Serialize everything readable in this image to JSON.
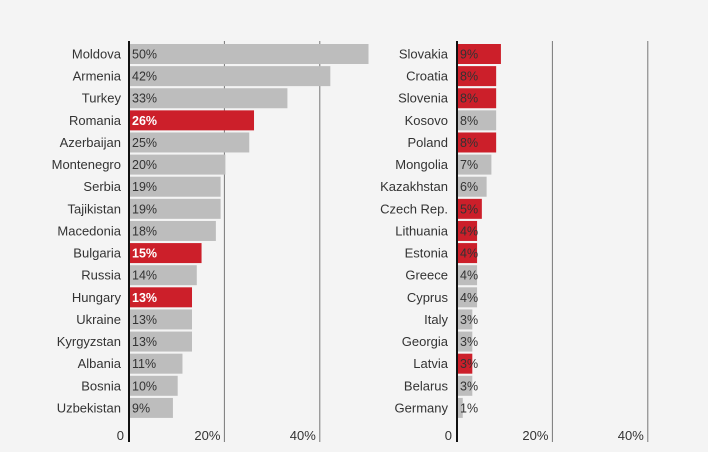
{
  "colors": {
    "background": "#f4f4f4",
    "bar_default": "#bdbdbd",
    "bar_highlight": "#cc1f2a",
    "axis": "#111111",
    "grid": "#777777",
    "text": "#333333"
  },
  "chart_data": [
    {
      "type": "bar",
      "orientation": "horizontal",
      "categories": [
        "Moldova",
        "Armenia",
        "Turkey",
        "Romania",
        "Azerbaijan",
        "Montenegro",
        "Serbia",
        "Tajikistan",
        "Macedonia",
        "Bulgaria",
        "Russia",
        "Hungary",
        "Ukraine",
        "Kyrgyzstan",
        "Albania",
        "Bosnia",
        "Uzbekistan"
      ],
      "values": [
        50,
        42,
        33,
        26,
        25,
        20,
        19,
        19,
        18,
        15,
        14,
        13,
        13,
        13,
        11,
        10,
        9
      ],
      "value_labels": [
        "50%",
        "42%",
        "33%",
        "26%",
        "25%",
        "20%",
        "19%",
        "19%",
        "18%",
        "15%",
        "14%",
        "13%",
        "13%",
        "13%",
        "11%",
        "10%",
        "9%"
      ],
      "highlighted": [
        "Romania",
        "Bulgaria",
        "Hungary"
      ],
      "xlim": [
        0,
        50
      ],
      "xticks": [
        0,
        20,
        40
      ],
      "xtick_labels": [
        "0",
        "20%",
        "40%"
      ],
      "grid": true
    },
    {
      "type": "bar",
      "orientation": "horizontal",
      "categories": [
        "Slovakia",
        "Croatia",
        "Slovenia",
        "Kosovo",
        "Poland",
        "Mongolia",
        "Kazakhstan",
        "Czech Rep.",
        "Lithuania",
        "Estonia",
        "Greece",
        "Cyprus",
        "Italy",
        "Georgia",
        "Latvia",
        "Belarus",
        "Germany"
      ],
      "values": [
        9,
        8,
        8,
        8,
        8,
        7,
        6,
        5,
        4,
        4,
        4,
        4,
        3,
        3,
        3,
        3,
        1
      ],
      "value_labels": [
        "9%",
        "8%",
        "8%",
        "8%",
        "8%",
        "7%",
        "6%",
        "5%",
        "4%",
        "4%",
        "4%",
        "4%",
        "3%",
        "3%",
        "3%",
        "3%",
        "1%"
      ],
      "highlighted": [
        "Slovakia",
        "Croatia",
        "Slovenia",
        "Poland",
        "Czech Rep.",
        "Lithuania",
        "Estonia",
        "Latvia"
      ],
      "xlim": [
        0,
        50
      ],
      "xticks": [
        0,
        20,
        40
      ],
      "xtick_labels": [
        "0",
        "20%",
        "40%"
      ],
      "grid": true
    }
  ]
}
